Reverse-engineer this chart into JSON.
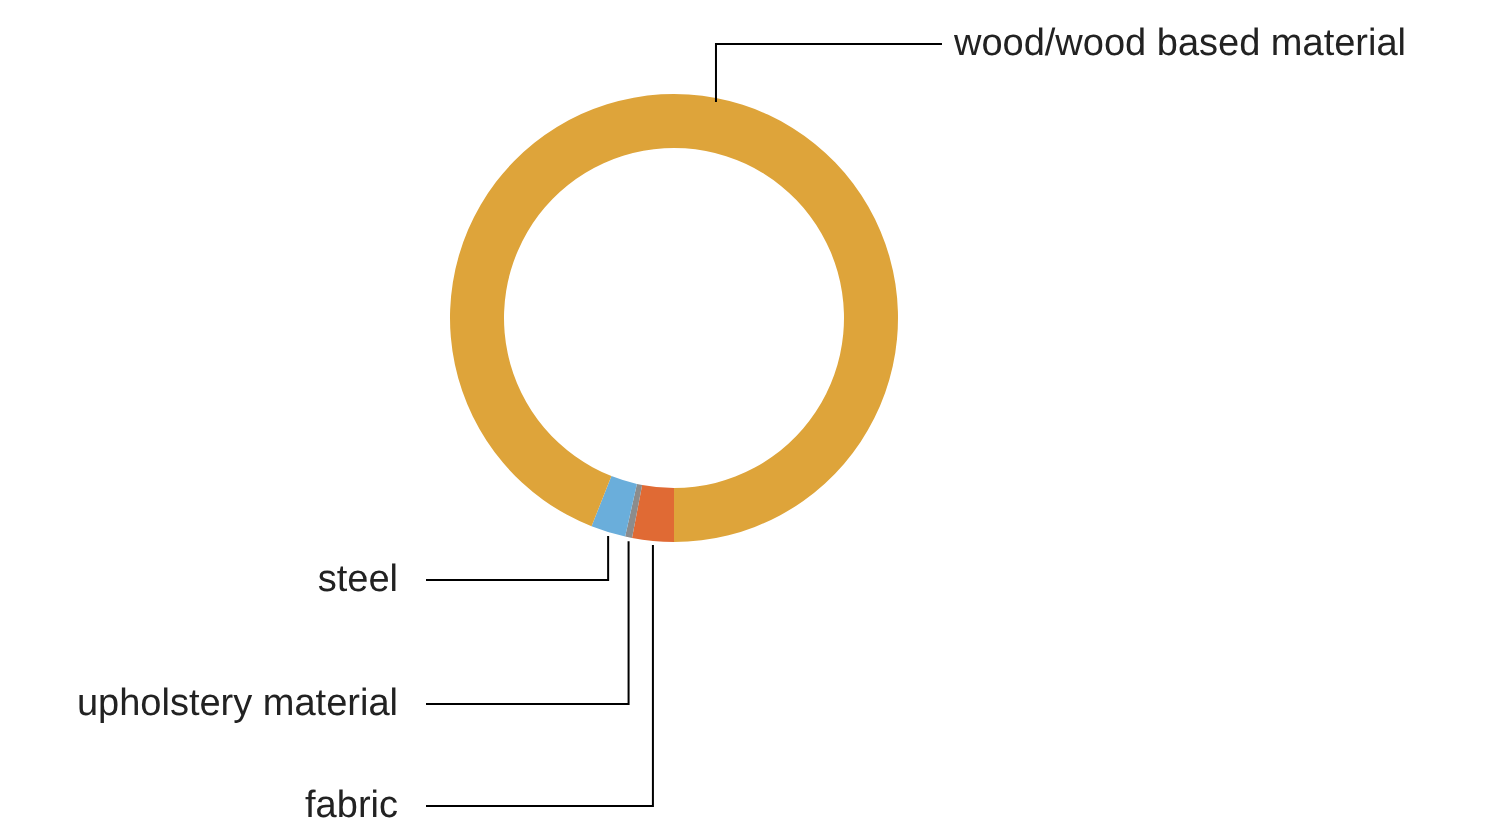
{
  "chart_data": {
    "type": "donut",
    "categories": [
      "fabric",
      "upholstery material",
      "steel",
      "wood/wood based material"
    ],
    "values": [
      3,
      0.5,
      2.5,
      94
    ],
    "colors": [
      "#e06a34",
      "#8c8c8c",
      "#6aaedb",
      "#dea43a"
    ],
    "legend": false
  }
}
